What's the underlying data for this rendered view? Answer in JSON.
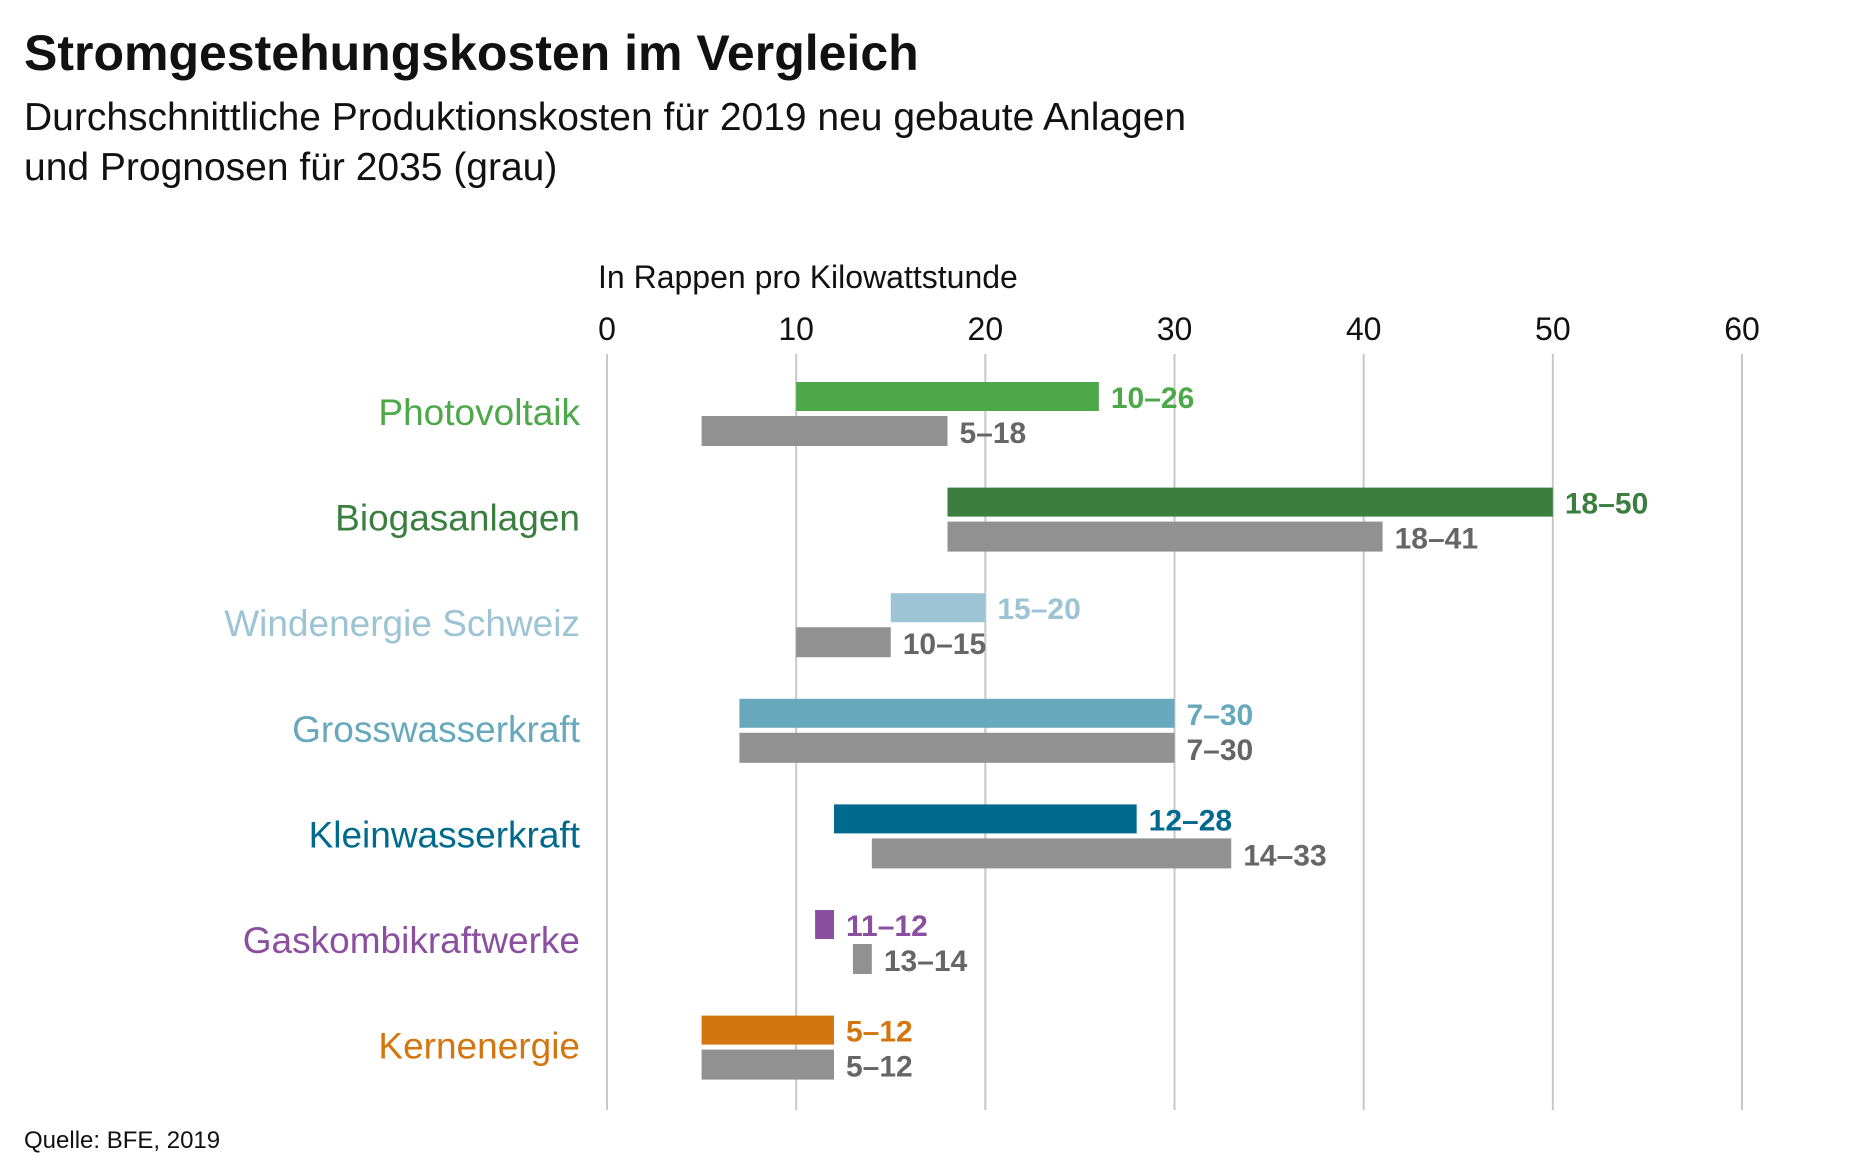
{
  "title": "Stromgestehungskosten im Vergleich",
  "subtitle_line1": "Durchschnittliche Produktionskosten für 2019 neu gebaute Anlagen",
  "subtitle_line2": "und Prognosen für 2035 (grau)",
  "source": "Quelle: BFE, 2019",
  "chart_data": {
    "type": "bar",
    "orientation": "horizontal",
    "bar_style": "range",
    "xlabel": "In Rappen pro Kilowattstunde",
    "xlim": [
      0,
      60
    ],
    "xticks": [
      "0",
      "10",
      "20",
      "30",
      "40",
      "50",
      "60"
    ],
    "grid": true,
    "categories": [
      "Photovoltaik",
      "Biogasanlagen",
      "Windenergie Schweiz",
      "Grosswasserkraft",
      "Kleinwasserkraft",
      "Gaskombikraftwerke",
      "Kernenergie"
    ],
    "colors": [
      "#4ca848",
      "#3a7f40",
      "#9cc4d4",
      "#68a8bd",
      "#006a8e",
      "#8a4f9e",
      "#d4760f"
    ],
    "forecast_color": "#919191",
    "forecast_label_color": "#666666",
    "series": [
      {
        "values": [
          [
            10,
            26
          ],
          [
            18,
            50
          ],
          [
            15,
            20
          ],
          [
            7,
            30
          ],
          [
            12,
            28
          ],
          [
            11,
            12
          ],
          [
            5,
            12
          ]
        ],
        "labels": [
          "10–26",
          "18–50",
          "15–20",
          "7–30",
          "12–28",
          "11–12",
          "5–12"
        ]
      },
      {
        "values": [
          [
            5,
            18
          ],
          [
            18,
            41
          ],
          [
            10,
            15
          ],
          [
            7,
            30
          ],
          [
            14,
            33
          ],
          [
            13,
            14
          ],
          [
            5,
            12
          ]
        ],
        "labels": [
          "5–18",
          "18–41",
          "10–15",
          "7–30",
          "14–33",
          "13–14",
          "5–12"
        ]
      }
    ]
  }
}
